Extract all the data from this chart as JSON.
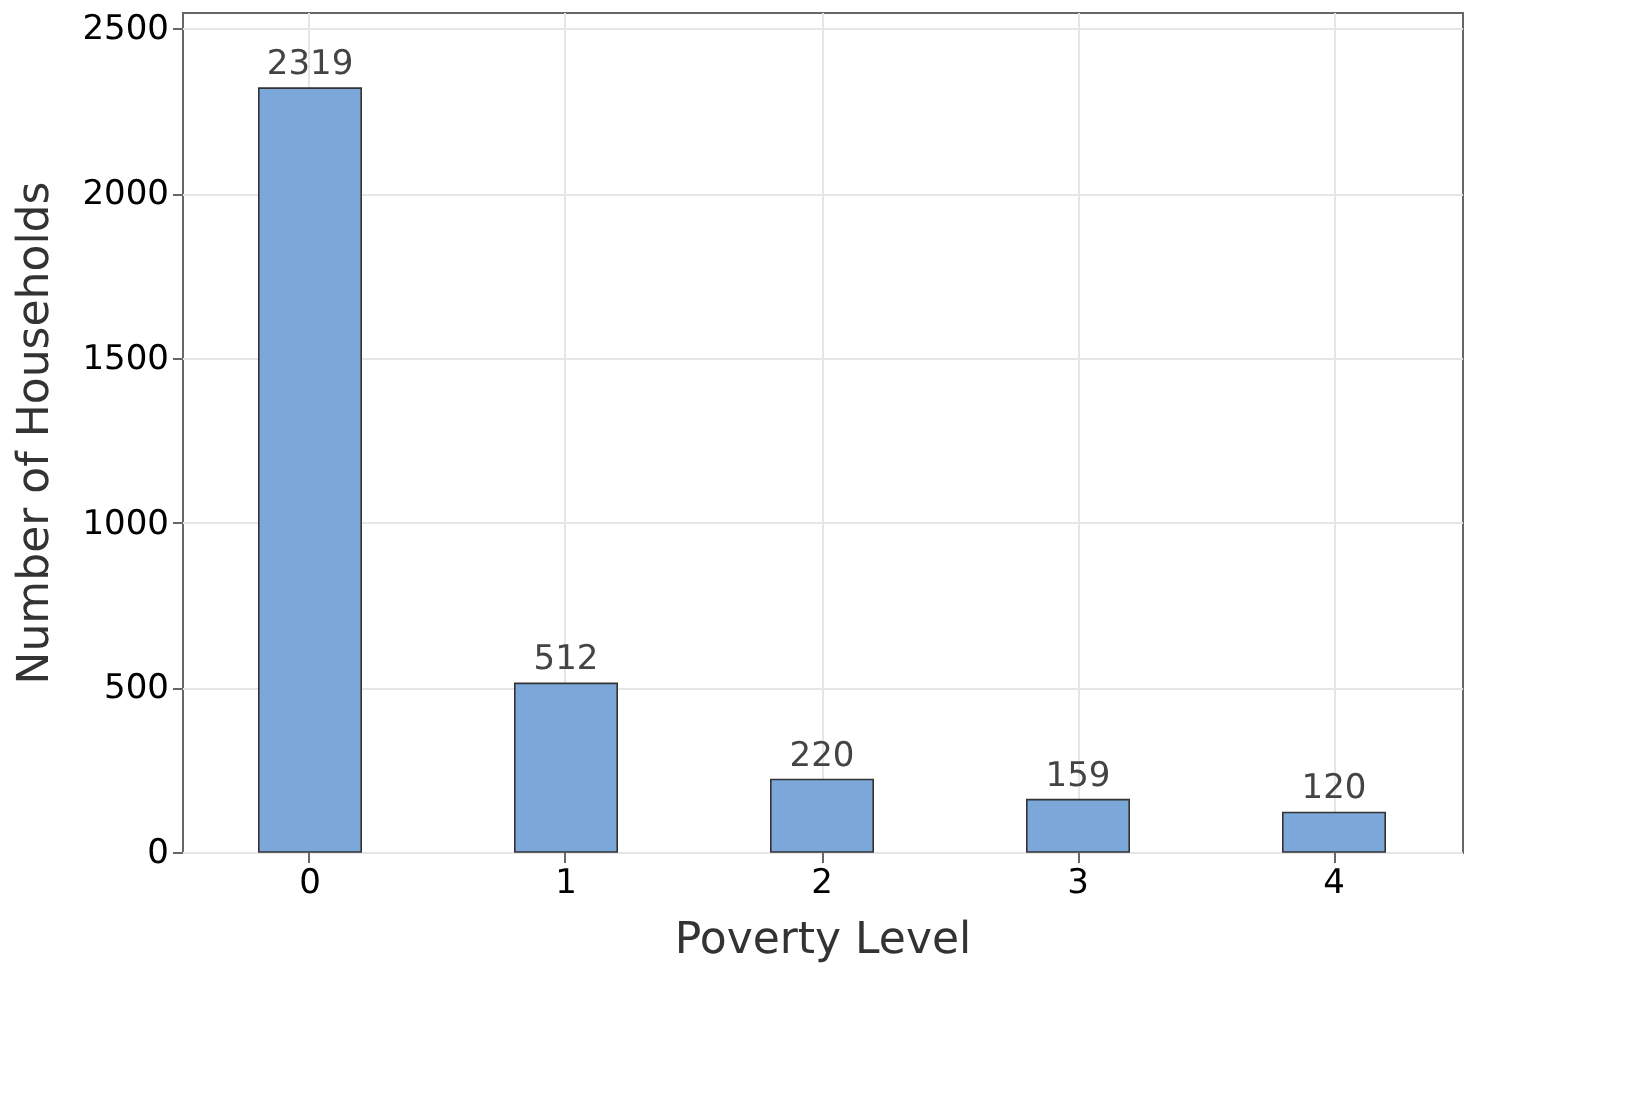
{
  "chart_data": {
    "type": "bar",
    "xlabel": "Poverty Level",
    "ylabel": "Number of Households",
    "categories": [
      "0",
      "1",
      "2",
      "3",
      "4"
    ],
    "values": [
      2319,
      512,
      220,
      159,
      120
    ],
    "color": "#7ba7d9",
    "ylim": [
      0,
      2550
    ],
    "yticks": [
      0,
      500,
      1000,
      1500,
      2000,
      2500
    ],
    "grid": true,
    "data_labels": true
  }
}
